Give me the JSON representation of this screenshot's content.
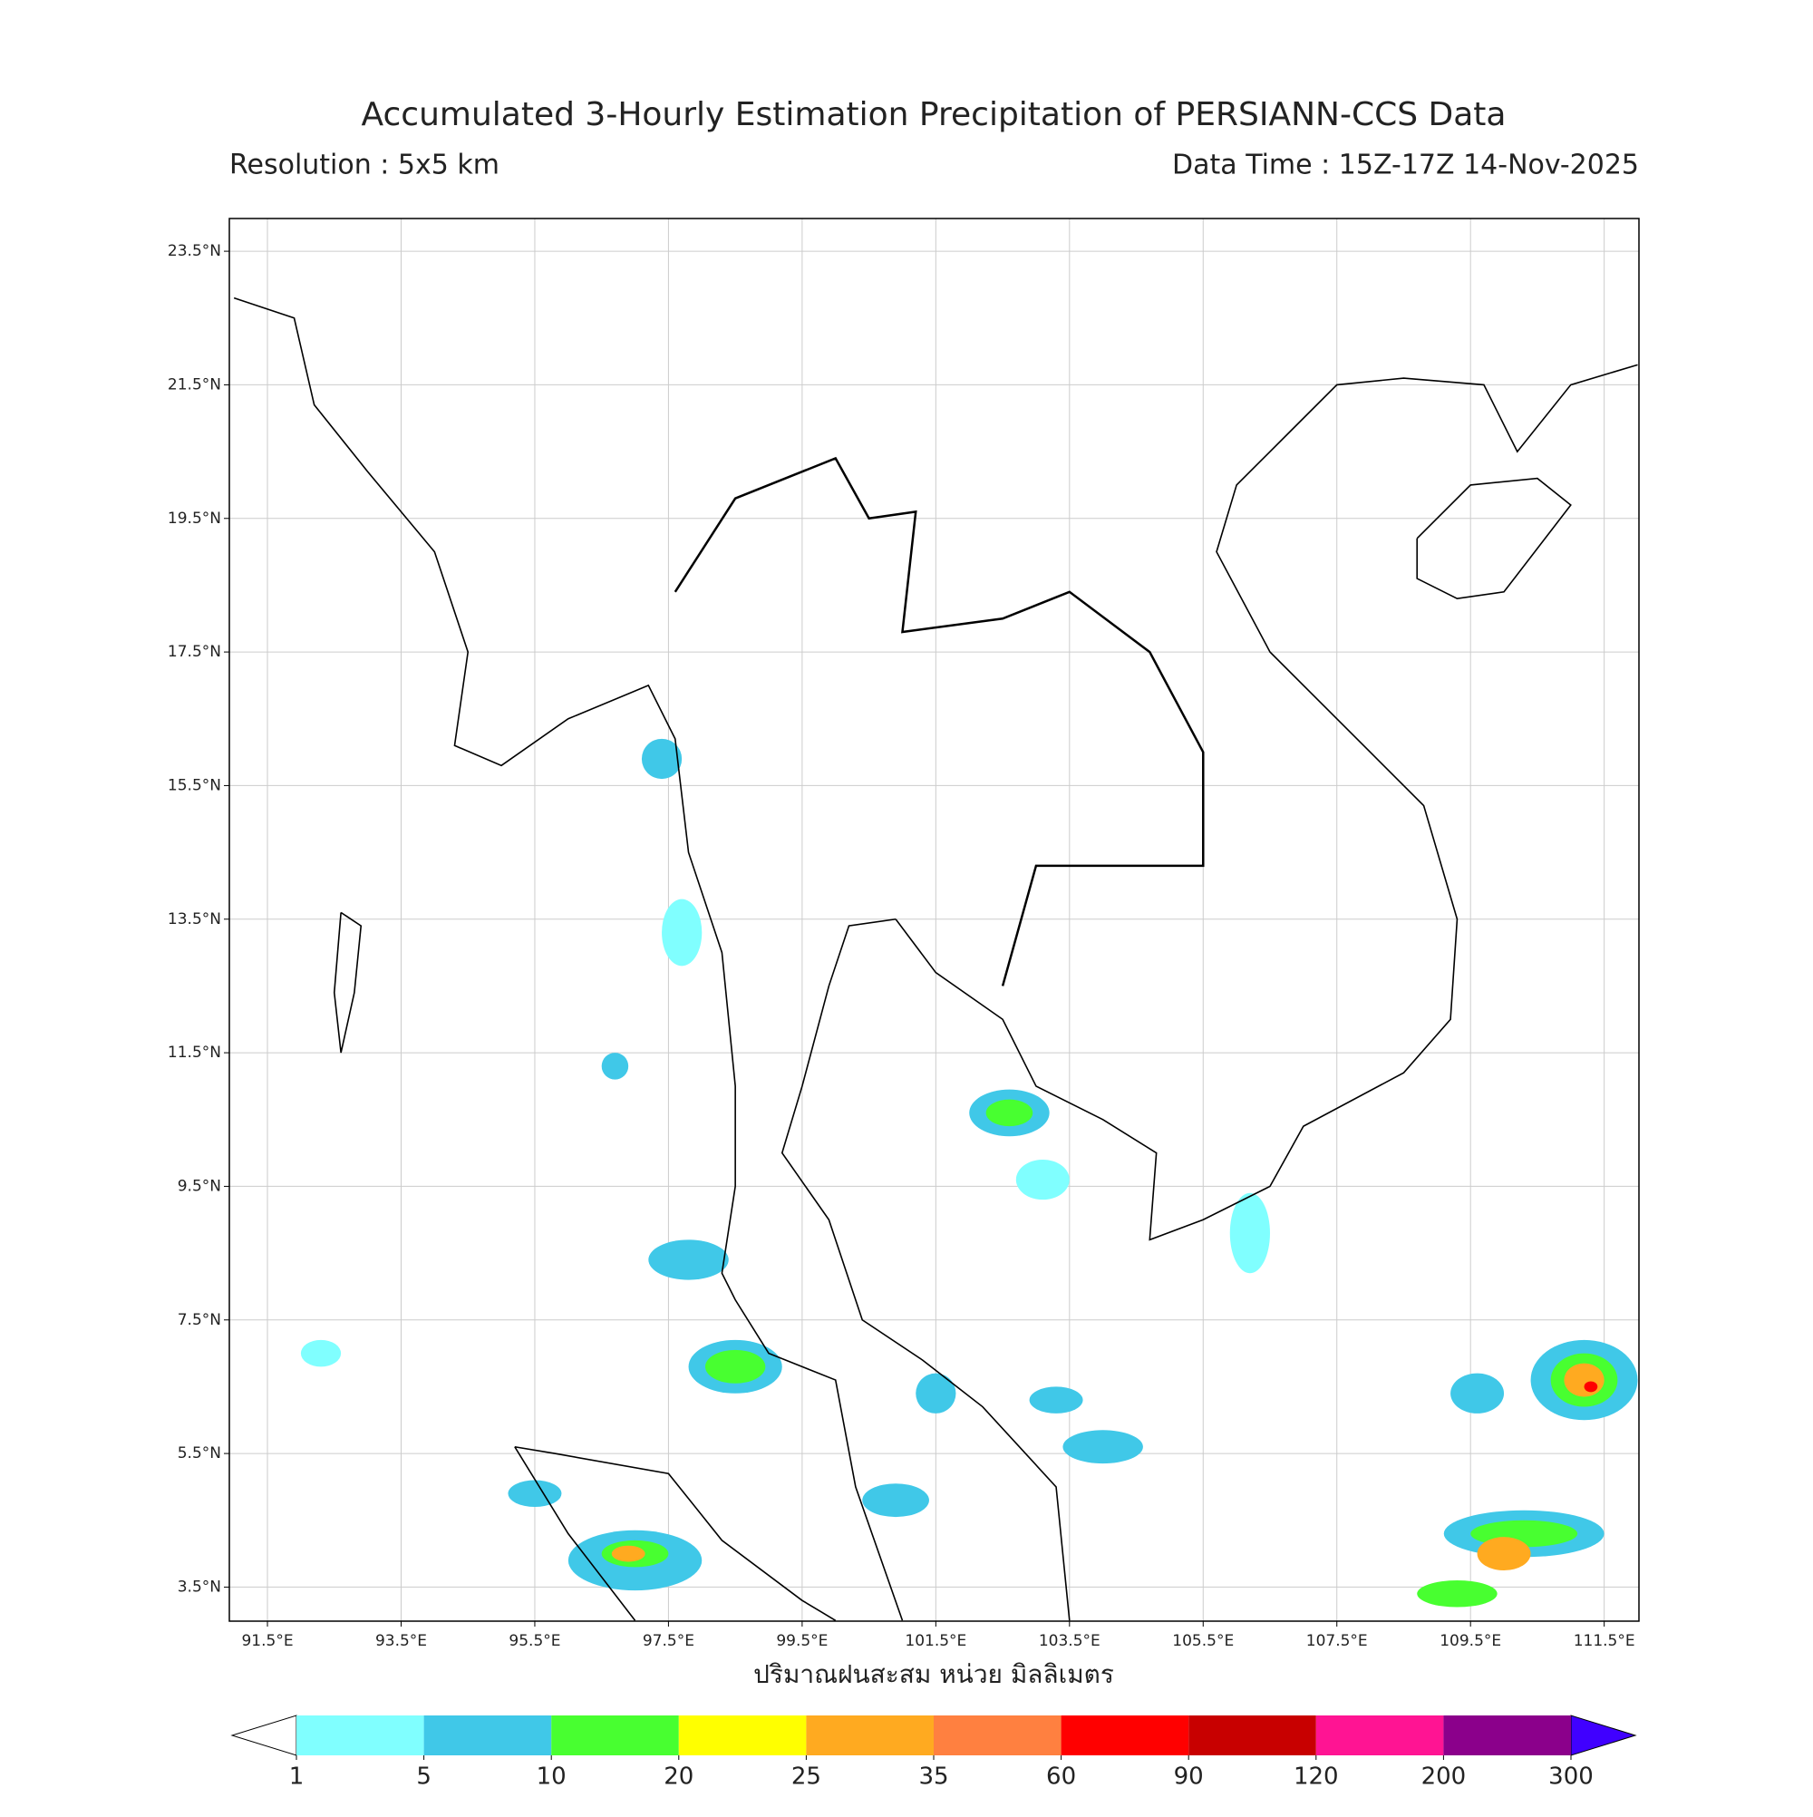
{
  "header": {
    "title": "Accumulated 3-Hourly Estimation Precipitation of PERSIANN-CCS Data",
    "resolution": "Resolution : 5x5 km",
    "data_time": "Data Time : 15Z-17Z 14-Nov-2025"
  },
  "map": {
    "lon_range": [
      90.93,
      112.02
    ],
    "lat_range": [
      2.99,
      23.99
    ],
    "lon_ticks": [
      {
        "value": 91.5,
        "label": "91.5°E"
      },
      {
        "value": 93.5,
        "label": "93.5°E"
      },
      {
        "value": 95.5,
        "label": "95.5°E"
      },
      {
        "value": 97.5,
        "label": "97.5°E"
      },
      {
        "value": 99.5,
        "label": "99.5°E"
      },
      {
        "value": 101.5,
        "label": "101.5°E"
      },
      {
        "value": 103.5,
        "label": "103.5°E"
      },
      {
        "value": 105.5,
        "label": "105.5°E"
      },
      {
        "value": 107.5,
        "label": "107.5°E"
      },
      {
        "value": 109.5,
        "label": "109.5°E"
      },
      {
        "value": 111.5,
        "label": "111.5°E"
      }
    ],
    "lat_ticks": [
      {
        "value": 23.5,
        "label": "23.5°N"
      },
      {
        "value": 21.5,
        "label": "21.5°N"
      },
      {
        "value": 19.5,
        "label": "19.5°N"
      },
      {
        "value": 17.5,
        "label": "17.5°N"
      },
      {
        "value": 15.5,
        "label": "15.5°N"
      },
      {
        "value": 13.5,
        "label": "13.5°N"
      },
      {
        "value": 11.5,
        "label": "11.5°N"
      },
      {
        "value": 9.5,
        "label": "9.5°N"
      },
      {
        "value": 7.5,
        "label": "7.5°N"
      },
      {
        "value": 5.5,
        "label": "5.5°N"
      },
      {
        "value": 3.5,
        "label": "3.5°N"
      }
    ],
    "xlabel": "ปริมาณฝนสะสม หน่วย มิลลิเมตร"
  },
  "colorbar": {
    "bounds": [
      1,
      5,
      10,
      20,
      25,
      35,
      60,
      90,
      120,
      200,
      300
    ],
    "colors": [
      "#80ffff",
      "#40c8e8",
      "#48ff30",
      "#ffff00",
      "#ffaa20",
      "#ff8040",
      "#ff0000",
      "#c80000",
      "#ff1493",
      "#8b008b"
    ],
    "under_color": "#ffffff",
    "over_color": "#4000ff"
  }
}
